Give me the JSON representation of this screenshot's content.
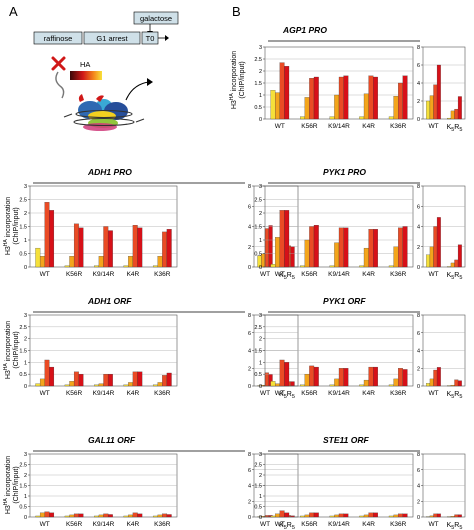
{
  "panel_labels": [
    "A",
    "B"
  ],
  "schematic": {
    "galactose": "galactose",
    "raffinose": "raffinose",
    "g1_arrest": "G1 arrest",
    "t0": "T0",
    "ha": "HA"
  },
  "y_label_main": "H3",
  "y_label_sup": "HA",
  "y_label_rest": " incorporation",
  "y_label_line2": "(ChIP/input)",
  "strains": [
    "WT",
    "K56R",
    "K9/14R",
    "K4R",
    "K36R"
  ],
  "k5r5": {
    "k1": "K",
    "n1": "5",
    "r": "R",
    "n2": "5"
  },
  "series_colors": [
    "#f5e03a",
    "#f3a51c",
    "#ea4b25",
    "#d71018"
  ],
  "chart_data": [
    {
      "type": "bar",
      "title": "AGP1 PRO",
      "categories": [
        "WT",
        "K56R",
        "K9/14R",
        "K4R",
        "K36R"
      ],
      "values": [
        [
          1.2,
          1.1,
          2.35,
          2.2
        ],
        [
          0.1,
          0.9,
          1.7,
          1.75
        ],
        [
          0.1,
          1.0,
          1.75,
          1.8
        ],
        [
          0.1,
          1.05,
          1.8,
          1.75
        ],
        [
          0.1,
          0.95,
          1.5,
          1.8
        ]
      ],
      "ylim": [
        0,
        3
      ],
      "yticks": [
        0,
        0.5,
        1,
        1.5,
        2,
        2.5,
        3
      ],
      "inset": {
        "categories": [
          "WT",
          "K5R5"
        ],
        "values": [
          [
            2.0,
            2.6,
            3.8,
            6.0
          ],
          [
            0.1,
            0.9,
            1.1,
            2.5
          ]
        ],
        "ylim": [
          0,
          8
        ],
        "yticks": [
          0,
          2,
          4,
          6,
          8
        ]
      }
    },
    {
      "type": "bar",
      "title": "ADH1 PRO",
      "categories": [
        "WT",
        "K56R",
        "K9/14R",
        "K4R",
        "K36R"
      ],
      "values": [
        [
          0.7,
          0.4,
          2.4,
          2.1
        ],
        [
          0.05,
          0.4,
          1.6,
          1.45
        ],
        [
          0.05,
          0.4,
          1.5,
          1.35
        ],
        [
          0.05,
          0.4,
          1.55,
          1.45
        ],
        [
          0.05,
          0.4,
          1.3,
          1.4
        ]
      ],
      "ylim": [
        0,
        3
      ],
      "yticks": [
        0,
        0.5,
        1,
        1.5,
        2,
        2.5,
        3
      ],
      "inset": {
        "categories": [
          "WT",
          "K5R5"
        ],
        "values": [
          [
            1.1,
            1.3,
            3.8,
            4.1
          ],
          [
            0.05,
            0.8,
            2.1,
            2.0
          ]
        ],
        "ylim": [
          0,
          8
        ],
        "yticks": [
          0,
          2,
          4,
          6,
          8
        ]
      }
    },
    {
      "type": "bar",
      "title": "PYK1 PRO",
      "categories": [
        "WT",
        "K56R",
        "K9/14R",
        "K4R",
        "K36R"
      ],
      "values": [
        [
          0.1,
          1.1,
          2.1,
          2.1
        ],
        [
          0.05,
          1.0,
          1.5,
          1.55
        ],
        [
          0.05,
          0.9,
          1.45,
          1.45
        ],
        [
          0.05,
          0.7,
          1.4,
          1.4
        ],
        [
          0.05,
          0.75,
          1.45,
          1.5
        ]
      ],
      "ylim": [
        0,
        3
      ],
      "yticks": [
        0,
        0.5,
        1,
        1.5,
        2,
        2.5,
        3
      ],
      "inset": {
        "categories": [
          "WT",
          "K5R5"
        ],
        "values": [
          [
            1.2,
            2.0,
            4.0,
            4.9
          ],
          [
            0.05,
            0.4,
            0.7,
            2.2
          ]
        ],
        "ylim": [
          0,
          8
        ],
        "yticks": [
          0,
          2,
          4,
          6,
          8
        ]
      }
    },
    {
      "type": "bar",
      "title": "ADH1 ORF",
      "categories": [
        "WT",
        "K56R",
        "K9/14R",
        "K4R",
        "K36R"
      ],
      "values": [
        [
          0.1,
          0.3,
          1.1,
          0.8
        ],
        [
          0.05,
          0.2,
          0.6,
          0.5
        ],
        [
          0.05,
          0.1,
          0.5,
          0.5
        ],
        [
          0.05,
          0.15,
          0.6,
          0.6
        ],
        [
          0.05,
          0.15,
          0.45,
          0.55
        ]
      ],
      "ylim": [
        0,
        3
      ],
      "yticks": [
        0,
        0.5,
        1,
        1.5,
        2,
        2.5,
        3
      ],
      "inset": {
        "categories": [
          "WT",
          "K5R5"
        ],
        "values": [
          [
            0.05,
            0.1,
            1.5,
            1.3
          ],
          [
            0.05,
            0.1,
            0.5,
            0.5
          ]
        ],
        "ylim": [
          0,
          8
        ],
        "yticks": [
          0,
          2,
          4,
          6,
          8
        ]
      }
    },
    {
      "type": "bar",
      "title": "PYK1 ORF",
      "categories": [
        "WT",
        "K56R",
        "K9/14R",
        "K4R",
        "K36R"
      ],
      "values": [
        [
          0.2,
          0.1,
          1.1,
          1.0
        ],
        [
          0.05,
          0.5,
          0.85,
          0.8
        ],
        [
          0.05,
          0.3,
          0.75,
          0.75
        ],
        [
          0.05,
          0.25,
          0.8,
          0.8
        ],
        [
          0.05,
          0.3,
          0.75,
          0.7
        ]
      ],
      "ylim": [
        0,
        3
      ],
      "yticks": [
        0,
        0.5,
        1,
        1.5,
        2,
        2.5,
        3
      ],
      "inset": {
        "categories": [
          "WT",
          "K5R5"
        ],
        "values": [
          [
            0.3,
            0.8,
            1.8,
            2.1
          ],
          [
            0.05,
            0.1,
            0.7,
            0.6
          ]
        ],
        "ylim": [
          0,
          8
        ],
        "yticks": [
          0,
          2,
          4,
          6,
          8
        ]
      }
    },
    {
      "type": "bar",
      "title": "GAL11 ORF",
      "categories": [
        "WT",
        "K56R",
        "K9/14R",
        "K4R",
        "K36R"
      ],
      "values": [
        [
          0.05,
          0.2,
          0.25,
          0.2
        ],
        [
          0.05,
          0.1,
          0.15,
          0.15
        ],
        [
          0.05,
          0.1,
          0.15,
          0.12
        ],
        [
          0.05,
          0.1,
          0.2,
          0.15
        ],
        [
          0.05,
          0.1,
          0.15,
          0.12
        ]
      ],
      "ylim": [
        0,
        3
      ],
      "yticks": [
        0,
        0.5,
        1,
        1.5,
        2,
        2.5,
        3
      ],
      "inset": {
        "categories": [
          "WT",
          "K5R5"
        ],
        "values": [
          [
            0.05,
            0.1,
            0.2,
            0.2
          ],
          [
            0.05,
            0.1,
            0.2,
            0.15
          ]
        ],
        "ylim": [
          0,
          8
        ],
        "yticks": [
          0,
          2,
          4,
          6,
          8
        ]
      }
    },
    {
      "type": "bar",
      "title": "STE11 ORF",
      "categories": [
        "WT",
        "K56R",
        "K9/14R",
        "K4R",
        "K36R"
      ],
      "values": [
        [
          0.05,
          0.15,
          0.3,
          0.2
        ],
        [
          0.05,
          0.1,
          0.2,
          0.2
        ],
        [
          0.05,
          0.1,
          0.15,
          0.15
        ],
        [
          0.05,
          0.1,
          0.2,
          0.2
        ],
        [
          0.05,
          0.1,
          0.15,
          0.15
        ]
      ],
      "ylim": [
        0,
        3
      ],
      "yticks": [
        0,
        0.5,
        1,
        1.5,
        2,
        2.5,
        3
      ],
      "inset": {
        "categories": [
          "WT",
          "K5R5"
        ],
        "values": [
          [
            0.05,
            0.15,
            0.4,
            0.4
          ],
          [
            0.05,
            0.1,
            0.3,
            0.3
          ]
        ],
        "ylim": [
          0,
          8
        ],
        "yticks": [
          0,
          2,
          4,
          6,
          8
        ]
      }
    }
  ]
}
